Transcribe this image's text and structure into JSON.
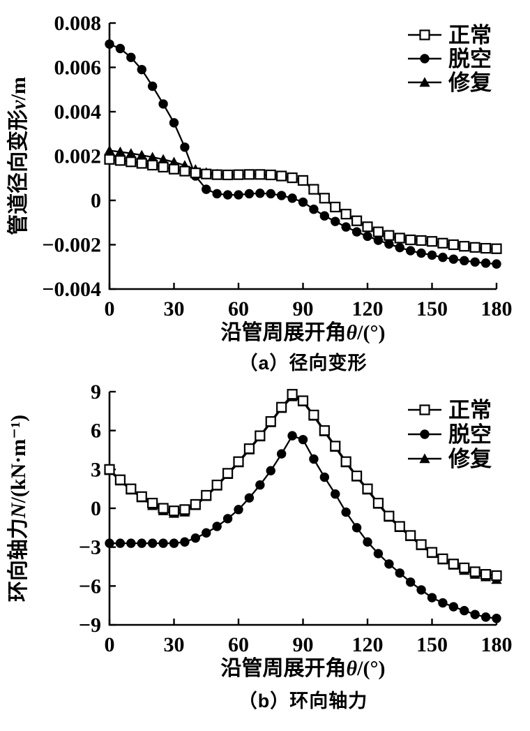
{
  "page": {
    "background": "#ffffff",
    "ink": "#000000"
  },
  "legend": {
    "items": [
      {
        "label": "正常",
        "marker": "square-open"
      },
      {
        "label": "脱空",
        "marker": "circle-filled"
      },
      {
        "label": "修复",
        "marker": "triangle-filled"
      }
    ]
  },
  "chart_data": [
    {
      "id": "a",
      "type": "line",
      "caption": "（a）径向变形",
      "xlabel_text": "沿管周展开角θ/(°)",
      "ylabel_text": "管道径向变形v/m",
      "xlabel_parts": [
        {
          "t": "沿管周展开角"
        },
        {
          "t": "θ",
          "i": true,
          "f": "serif"
        },
        {
          "t": "/(°)",
          "f": "serif"
        }
      ],
      "ylabel_parts": [
        {
          "t": "管道径向变形"
        },
        {
          "t": "v",
          "i": true,
          "f": "serif"
        },
        {
          "t": "/m",
          "f": "serif"
        }
      ],
      "xlim": [
        0,
        180
      ],
      "ylim": [
        -0.004,
        0.008
      ],
      "grid": false,
      "legend_position": "top-right",
      "x_ticks": [
        {
          "v": 0,
          "label": "0"
        },
        {
          "v": 30,
          "label": "30"
        },
        {
          "v": 60,
          "label": "60"
        },
        {
          "v": 90,
          "label": "90"
        },
        {
          "v": 120,
          "label": "120"
        },
        {
          "v": 150,
          "label": "150"
        },
        {
          "v": 180,
          "label": "180"
        }
      ],
      "y_ticks": [
        {
          "v": 0.008,
          "label": "0.008"
        },
        {
          "v": 0.006,
          "label": "0.006"
        },
        {
          "v": 0.004,
          "label": "0.004"
        },
        {
          "v": 0.002,
          "label": "0.002"
        },
        {
          "v": 0,
          "label": "0"
        },
        {
          "v": -0.002,
          "label": "−0.002"
        },
        {
          "v": -0.004,
          "label": "−0.004"
        }
      ],
      "x": [
        0,
        5,
        10,
        15,
        20,
        25,
        30,
        35,
        40,
        45,
        50,
        55,
        60,
        65,
        70,
        75,
        80,
        85,
        90,
        95,
        100,
        105,
        110,
        115,
        120,
        125,
        130,
        135,
        140,
        145,
        150,
        155,
        160,
        165,
        170,
        175,
        180
      ],
      "series": [
        {
          "name": "正常",
          "marker": "square-open",
          "values": [
            0.00185,
            0.0018,
            0.00174,
            0.00167,
            0.00159,
            0.0015,
            0.00141,
            0.00132,
            0.00124,
            0.00119,
            0.00116,
            0.00115,
            0.00116,
            0.00117,
            0.00117,
            0.00115,
            0.0011,
            0.00102,
            0.0009,
            0.0005,
            0.0001,
            -0.0003,
            -0.00062,
            -0.00092,
            -0.00119,
            -0.00142,
            -0.00158,
            -0.0017,
            -0.00178,
            -0.00181,
            -0.00185,
            -0.00193,
            -0.002,
            -0.00207,
            -0.00212,
            -0.00216,
            -0.00218
          ]
        },
        {
          "name": "脱空",
          "marker": "circle-filled",
          "values": [
            0.00705,
            0.00685,
            0.00645,
            0.0059,
            0.00515,
            0.00435,
            0.0035,
            0.0024,
            0.0011,
            0.0005,
            0.0003,
            0.00025,
            0.00025,
            0.0003,
            0.00032,
            0.0003,
            0.00022,
            0.0001,
            -8e-05,
            -0.0004,
            -0.0007,
            -0.00095,
            -0.0012,
            -0.00142,
            -0.00162,
            -0.0018,
            -0.00197,
            -0.00213,
            -0.00227,
            -0.00238,
            -0.00247,
            -0.00257,
            -0.00265,
            -0.00272,
            -0.00278,
            -0.00283,
            -0.00287
          ]
        },
        {
          "name": "修复",
          "marker": "triangle-filled",
          "values": [
            0.00225,
            0.00219,
            0.00212,
            0.00204,
            0.00195,
            0.00185,
            0.00173,
            0.00158,
            0.0014,
            0.00126,
            0.00119,
            0.00116,
            0.00116,
            0.00117,
            0.00116,
            0.00113,
            0.00108,
            0.001,
            0.00087,
            0.00047,
            7e-05,
            -0.00033,
            -0.00065,
            -0.00095,
            -0.00122,
            -0.00145,
            -0.00161,
            -0.00173,
            -0.00181,
            -0.00184,
            -0.00188,
            -0.00196,
            -0.00203,
            -0.0021,
            -0.00215,
            -0.00219,
            -0.00222
          ]
        }
      ]
    },
    {
      "id": "b",
      "type": "line",
      "caption": "（b）环向轴力",
      "xlabel_text": "沿管周展开角θ/(°)",
      "ylabel_text": "环向轴力N/(kN·m⁻¹)",
      "xlabel_parts": [
        {
          "t": "沿管周展开角"
        },
        {
          "t": "θ",
          "i": true,
          "f": "serif"
        },
        {
          "t": "/(°)",
          "f": "serif"
        }
      ],
      "ylabel_parts": [
        {
          "t": "环向轴力"
        },
        {
          "t": "N",
          "i": true,
          "f": "serif"
        },
        {
          "t": "/(kN·m⁻¹)",
          "f": "serif"
        }
      ],
      "xlim": [
        0,
        180
      ],
      "ylim": [
        -9,
        9
      ],
      "grid": false,
      "legend_position": "top-right",
      "x_ticks": [
        {
          "v": 0,
          "label": "0"
        },
        {
          "v": 30,
          "label": "30"
        },
        {
          "v": 60,
          "label": "60"
        },
        {
          "v": 90,
          "label": "90"
        },
        {
          "v": 120,
          "label": "120"
        },
        {
          "v": 150,
          "label": "150"
        },
        {
          "v": 180,
          "label": "180"
        }
      ],
      "y_ticks": [
        {
          "v": 9,
          "label": "9"
        },
        {
          "v": 6,
          "label": "6"
        },
        {
          "v": 3,
          "label": "3"
        },
        {
          "v": 0,
          "label": "0"
        },
        {
          "v": -3,
          "label": "−3"
        },
        {
          "v": -6,
          "label": "−6"
        },
        {
          "v": -9,
          "label": "−9"
        }
      ],
      "x": [
        0,
        5,
        10,
        15,
        20,
        25,
        30,
        35,
        40,
        45,
        50,
        55,
        60,
        65,
        70,
        75,
        80,
        85,
        90,
        95,
        100,
        105,
        110,
        115,
        120,
        125,
        130,
        135,
        140,
        145,
        150,
        155,
        160,
        165,
        170,
        175,
        180
      ],
      "series": [
        {
          "name": "正常",
          "marker": "square-open",
          "values": [
            3.0,
            2.2,
            1.5,
            0.9,
            0.4,
            0.0,
            -0.2,
            -0.1,
            0.3,
            1.0,
            1.8,
            2.7,
            3.6,
            4.6,
            5.6,
            6.7,
            7.8,
            8.8,
            8.3,
            7.2,
            6.0,
            4.8,
            3.6,
            2.5,
            1.5,
            0.4,
            -0.6,
            -1.4,
            -2.1,
            -2.8,
            -3.4,
            -3.9,
            -4.3,
            -4.6,
            -4.9,
            -5.1,
            -5.2
          ]
        },
        {
          "name": "脱空",
          "marker": "circle-filled",
          "values": [
            -2.7,
            -2.7,
            -2.7,
            -2.7,
            -2.7,
            -2.7,
            -2.7,
            -2.6,
            -2.3,
            -1.9,
            -1.4,
            -0.8,
            -0.1,
            0.8,
            1.8,
            2.9,
            4.2,
            5.6,
            5.3,
            3.8,
            2.4,
            1.1,
            -0.3,
            -1.5,
            -2.6,
            -3.5,
            -4.3,
            -5.0,
            -5.7,
            -6.3,
            -6.9,
            -7.3,
            -7.6,
            -7.9,
            -8.2,
            -8.4,
            -8.5
          ]
        },
        {
          "name": "修复",
          "marker": "triangle-filled",
          "values": [
            2.9,
            2.1,
            1.4,
            0.8,
            0.2,
            -0.2,
            -0.4,
            -0.3,
            0.2,
            0.9,
            1.7,
            2.6,
            3.5,
            4.5,
            5.5,
            6.6,
            7.7,
            8.6,
            8.2,
            7.1,
            5.9,
            4.7,
            3.5,
            2.4,
            1.4,
            0.3,
            -0.7,
            -1.5,
            -2.2,
            -2.9,
            -3.5,
            -4.0,
            -4.4,
            -4.8,
            -5.1,
            -5.3,
            -5.5
          ]
        }
      ]
    }
  ]
}
